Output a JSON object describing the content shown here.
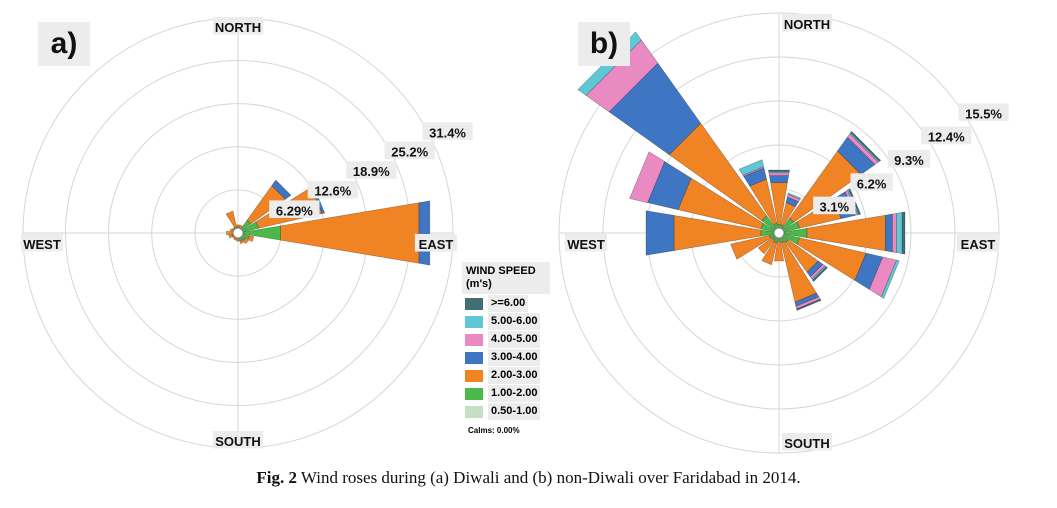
{
  "caption": {
    "prefix": "Fig. 2",
    "text": "Wind roses during (a) Diwali and (b) non-Diwali over Faridabad in 2014."
  },
  "legend": {
    "title": "WIND SPEED (m's)",
    "items": [
      {
        "label": ">=6.00",
        "color": "#3f6e73"
      },
      {
        "label": "5.00-6.00",
        "color": "#5ec8d6"
      },
      {
        "label": "4.00-5.00",
        "color": "#ea8ac2"
      },
      {
        "label": "3.00-4.00",
        "color": "#3f76c3"
      },
      {
        "label": "2.00-3.00",
        "color": "#f08424"
      },
      {
        "label": "1.00-2.00",
        "color": "#4cb848"
      },
      {
        "label": "0.50-1.00",
        "color": "#c6dfc4"
      }
    ],
    "calms": "Calms: 0.00%"
  },
  "chart_data": [
    {
      "type": "wind-rose",
      "panel_label": "a)",
      "period": "Diwali",
      "directions": {
        "north": "NORTH",
        "south": "SOUTH",
        "east": "EAST",
        "west": "WEST"
      },
      "rings": [
        6.29,
        12.6,
        18.9,
        25.2,
        31.4
      ],
      "ring_labels": [
        "6.29%",
        "12.6%",
        "18.9%",
        "25.2%",
        "31.4%"
      ],
      "speed_bins": [
        "0.50-1.00",
        "1.00-2.00",
        "2.00-3.00",
        "3.00-4.00",
        "4.00-5.00",
        "5.00-6.00",
        ">=6.00"
      ],
      "petals": [
        {
          "direction_deg": 0,
          "values": [
            0.3,
            0.6,
            0.3,
            0,
            0,
            0,
            0
          ]
        },
        {
          "direction_deg": 22.5,
          "values": [
            0.3,
            0.5,
            0.4,
            0,
            0,
            0,
            0
          ]
        },
        {
          "direction_deg": 45,
          "values": [
            0.5,
            1.8,
            6.2,
            1.0,
            0,
            0,
            0
          ]
        },
        {
          "direction_deg": 67.5,
          "values": [
            0.6,
            2.5,
            9.5,
            0.4,
            0,
            0,
            0
          ]
        },
        {
          "direction_deg": 90,
          "values": [
            0.8,
            5.5,
            20.5,
            1.6,
            0,
            0,
            0
          ]
        },
        {
          "direction_deg": 112.5,
          "values": [
            0.5,
            1.2,
            0.7,
            0,
            0,
            0,
            0
          ]
        },
        {
          "direction_deg": 135,
          "values": [
            0.4,
            0.9,
            0.6,
            0,
            0,
            0,
            0
          ]
        },
        {
          "direction_deg": 157.5,
          "values": [
            0.4,
            0.8,
            0.4,
            0,
            0,
            0,
            0
          ]
        },
        {
          "direction_deg": 180,
          "values": [
            0.3,
            0.5,
            0.4,
            0,
            0,
            0,
            0
          ]
        },
        {
          "direction_deg": 202.5,
          "values": [
            0.3,
            0.5,
            0.3,
            0,
            0,
            0,
            0
          ]
        },
        {
          "direction_deg": 225,
          "values": [
            0.3,
            0.4,
            0.3,
            0,
            0,
            0,
            0
          ]
        },
        {
          "direction_deg": 247.5,
          "values": [
            0.3,
            0.6,
            0.5,
            0,
            0,
            0,
            0
          ]
        },
        {
          "direction_deg": 270,
          "values": [
            0.3,
            0.5,
            0.9,
            0,
            0,
            0,
            0
          ]
        },
        {
          "direction_deg": 292.5,
          "values": [
            0.3,
            0.5,
            0.4,
            0,
            0,
            0,
            0
          ]
        },
        {
          "direction_deg": 315,
          "values": [
            0.3,
            0.5,
            0.2,
            0,
            0,
            0,
            0
          ]
        },
        {
          "direction_deg": 337.5,
          "values": [
            0.3,
            0.6,
            2.4,
            0,
            0,
            0,
            0
          ]
        }
      ]
    },
    {
      "type": "wind-rose",
      "panel_label": "b)",
      "period": "non-Diwali",
      "directions": {
        "north": "NORTH",
        "south": "SOUTH",
        "east": "EAST",
        "west": "WEST"
      },
      "rings": [
        3.1,
        6.2,
        9.3,
        12.4,
        15.5
      ],
      "ring_labels": [
        "3.1%",
        "6.2%",
        "9.3%",
        "12.4%",
        "15.5%"
      ],
      "speed_bins": [
        "0.50-1.00",
        "1.00-2.00",
        "2.00-3.00",
        "3.00-4.00",
        "4.00-5.00",
        "5.00-6.00",
        ">=6.00"
      ],
      "petals": [
        {
          "direction_deg": 0,
          "values": [
            0.2,
            0.4,
            3.0,
            0.5,
            0.2,
            0.1,
            0.1
          ]
        },
        {
          "direction_deg": 22.5,
          "values": [
            0.2,
            0.4,
            1.6,
            0.4,
            0.2,
            0.1,
            0
          ]
        },
        {
          "direction_deg": 45,
          "values": [
            0.3,
            1.0,
            5.8,
            1.2,
            0.3,
            0.1,
            0.1
          ]
        },
        {
          "direction_deg": 67.5,
          "values": [
            0.3,
            1.2,
            3.0,
            1.0,
            0.2,
            0.1,
            0.1
          ]
        },
        {
          "direction_deg": 90,
          "values": [
            0.4,
            1.6,
            5.6,
            0.5,
            0.3,
            0.4,
            0.2
          ]
        },
        {
          "direction_deg": 112.5,
          "values": [
            0.3,
            1.2,
            4.8,
            1.2,
            1.0,
            0.2,
            0
          ]
        },
        {
          "direction_deg": 135,
          "values": [
            0.2,
            0.6,
            2.6,
            0.4,
            0.2,
            0.1,
            0.1
          ]
        },
        {
          "direction_deg": 157.5,
          "values": [
            0.2,
            0.5,
            4.3,
            0.3,
            0.2,
            0,
            0.1
          ]
        },
        {
          "direction_deg": 180,
          "values": [
            0.2,
            0.4,
            1.4,
            0,
            0,
            0,
            0
          ]
        },
        {
          "direction_deg": 202.5,
          "values": [
            0.2,
            0.5,
            1.6,
            0,
            0,
            0,
            0
          ]
        },
        {
          "direction_deg": 225,
          "values": [
            0.2,
            0.4,
            1.2,
            0,
            0,
            0,
            0
          ]
        },
        {
          "direction_deg": 247.5,
          "values": [
            0.2,
            0.5,
            2.8,
            0,
            0,
            0,
            0
          ]
        },
        {
          "direction_deg": 270,
          "values": [
            0.3,
            1.0,
            6.2,
            2.0,
            0,
            0,
            0
          ]
        },
        {
          "direction_deg": 292.5,
          "values": [
            0.3,
            1.0,
            6.0,
            2.2,
            1.3,
            0,
            0
          ]
        },
        {
          "direction_deg": 315,
          "values": [
            0.3,
            1.2,
            8.0,
            5.2,
            2.0,
            0.7,
            0
          ]
        },
        {
          "direction_deg": 337.5,
          "values": [
            0.2,
            0.5,
            3.2,
            0.8,
            0.1,
            0.5,
            0
          ]
        }
      ]
    }
  ]
}
